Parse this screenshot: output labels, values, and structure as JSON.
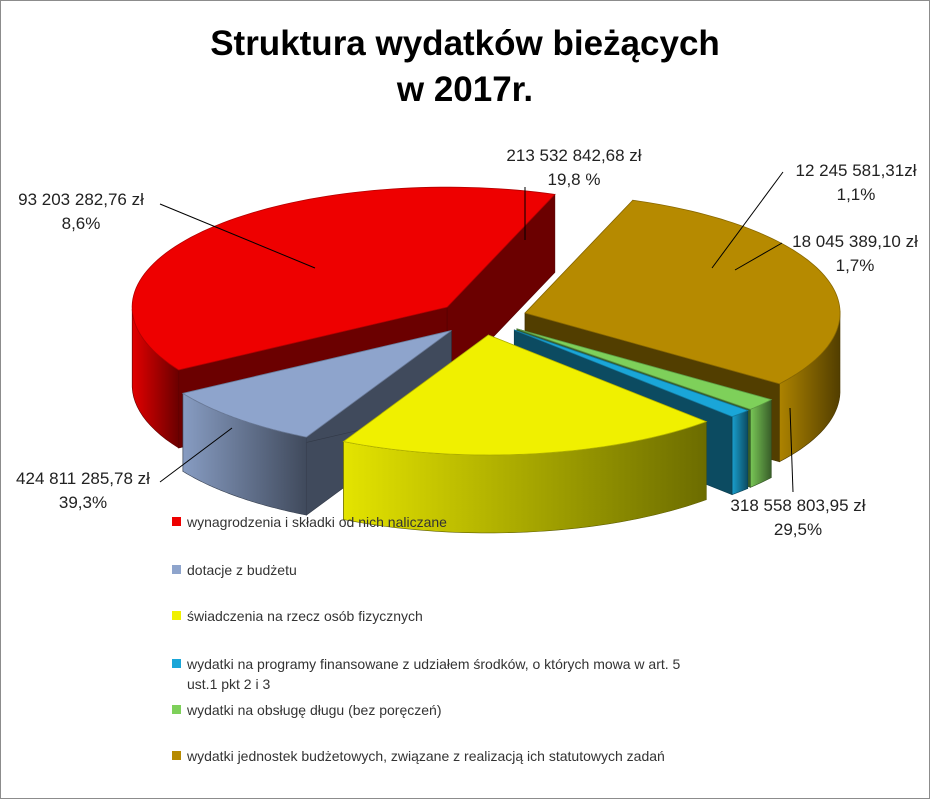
{
  "title_line1": "Struktura wydatków bieżących",
  "title_line2": "w 2017r.",
  "chart_data": {
    "type": "pie",
    "title": "Struktura wydatków bieżących w 2017r.",
    "slices": [
      {
        "name": "wynagrodzenia i składki od nich naliczane",
        "value_label": "424 811 285,78 zł",
        "percent_label": "39,3%",
        "value": 424811285.78,
        "percent": 39.3,
        "color": "#ee0000"
      },
      {
        "name": "dotacje z budżetu",
        "value_label": "93 203 282,76 zł",
        "percent_label": "8,6%",
        "value": 93203282.76,
        "percent": 8.6,
        "color": "#8ea4cc"
      },
      {
        "name": "świadczenia na rzecz osób fizycznych",
        "value_label": "213 532 842,68 zł",
        "percent_label": "19,8 %",
        "value": 213532842.68,
        "percent": 19.8,
        "color": "#f0f000"
      },
      {
        "name": "wydatki na programy finansowane z udziałem środków, o których mowa w art. 5 ust.1 pkt 2 i 3",
        "value_label": "12 245 581,31zł",
        "percent_label": "1,1%",
        "value": 12245581.31,
        "percent": 1.1,
        "color": "#1aa6d8"
      },
      {
        "name": "wydatki na obsługę długu (bez poręczeń)",
        "value_label": "18 045 389,10 zł",
        "percent_label": "1,7%",
        "value": 18045389.1,
        "percent": 1.7,
        "color": "#7ed05a"
      },
      {
        "name": "wydatki jednostek budżetowych, związane z realizacją ich statutowych zadań",
        "value_label": "318 558 803,95 zł",
        "percent_label": "29,5%",
        "value": 318558803.95,
        "percent": 29.5,
        "color": "#b68a00"
      }
    ],
    "legend_position": "bottom-left"
  }
}
